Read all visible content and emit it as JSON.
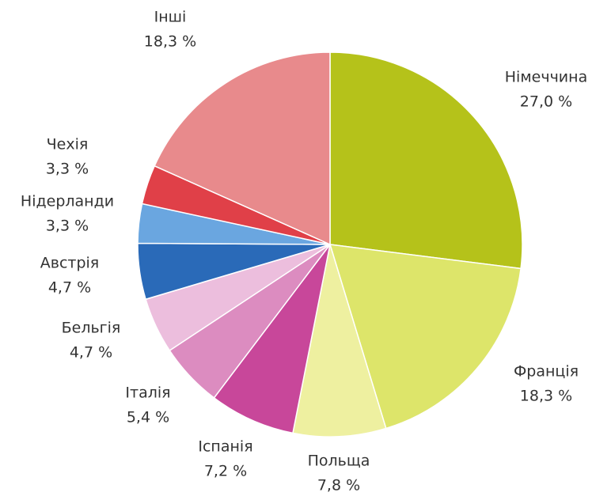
{
  "chart_data": {
    "type": "pie",
    "categories": [
      "Німеччина",
      "Франція",
      "Польща",
      "Іспанія",
      "Італія",
      "Бельгія",
      "Австрія",
      "Нідерланди",
      "Чехія",
      "Інші"
    ],
    "values": [
      27.0,
      18.3,
      7.8,
      7.2,
      5.4,
      4.7,
      4.7,
      3.3,
      3.3,
      18.3
    ],
    "value_labels": [
      "27,0 %",
      "18,3 %",
      "7,8 %",
      "7,2 %",
      "5,4 %",
      "4,7 %",
      "4,7 %",
      "3,3 %",
      "3,3 %",
      "18,3 %"
    ],
    "colors": [
      "#b5c21a",
      "#dde56a",
      "#eef0a0",
      "#c8479a",
      "#dc8cc0",
      "#ecbedd",
      "#2a6ab8",
      "#6aa6e0",
      "#e04048",
      "#e88a8c"
    ]
  }
}
